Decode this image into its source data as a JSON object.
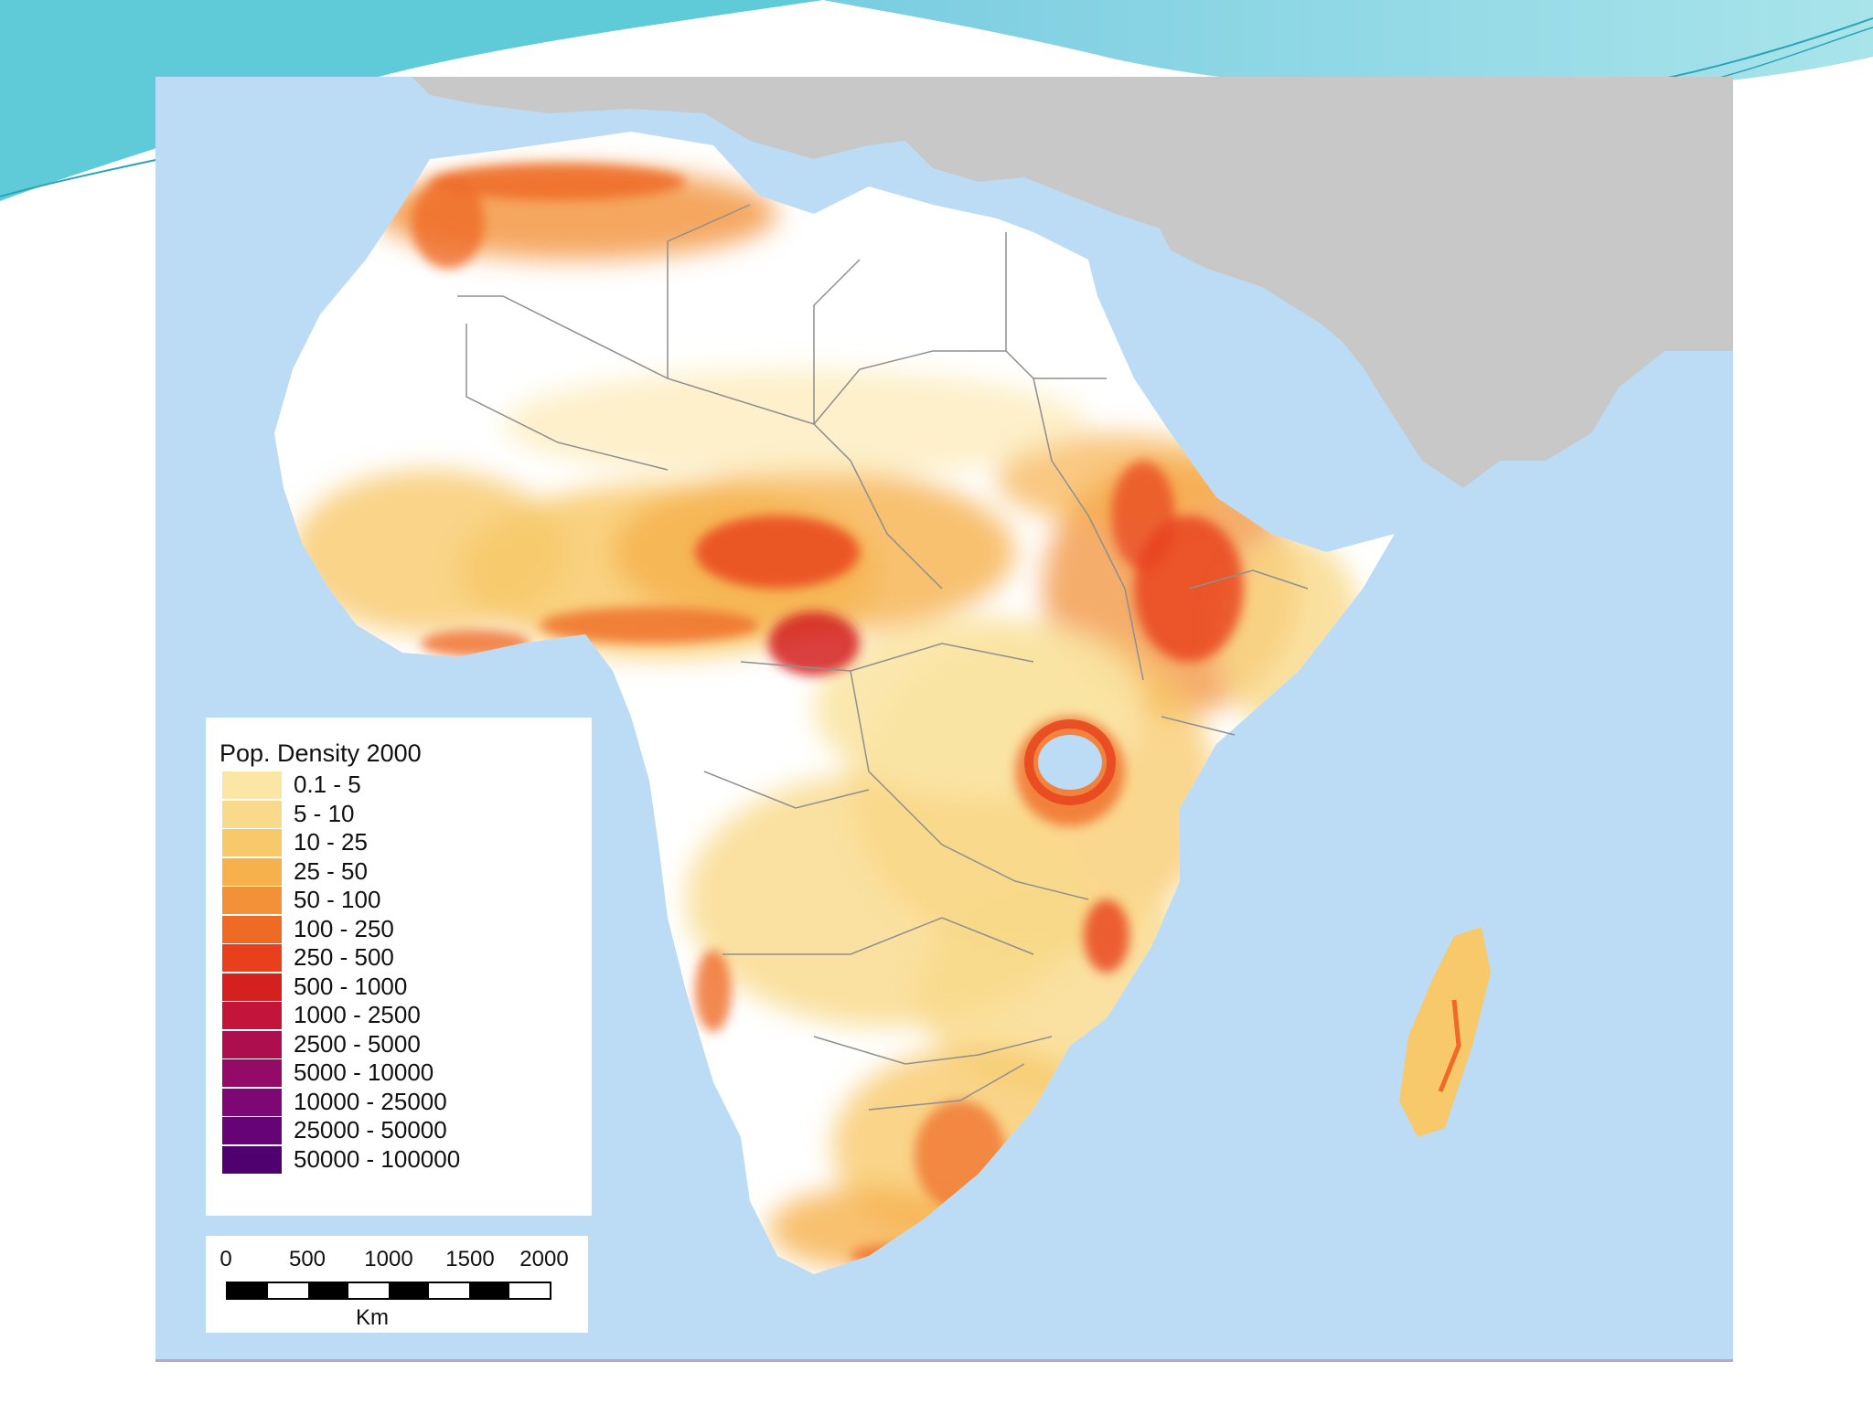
{
  "legend": {
    "title": "Pop. Density 2000",
    "classes": [
      {
        "label": "0.1 - 5",
        "color": "#fbe6a6"
      },
      {
        "label": "5 - 10",
        "color": "#f9da8a"
      },
      {
        "label": "10 - 25",
        "color": "#f8c96a"
      },
      {
        "label": "25 - 50",
        "color": "#f6b14d"
      },
      {
        "label": "50 - 100",
        "color": "#f29138"
      },
      {
        "label": "100 - 250",
        "color": "#ef6a25"
      },
      {
        "label": "250 - 500",
        "color": "#e8401c"
      },
      {
        "label": "500 - 1000",
        "color": "#d4201e"
      },
      {
        "label": "1000 - 2500",
        "color": "#c3153a"
      },
      {
        "label": "2500 - 5000",
        "color": "#ad0f4e"
      },
      {
        "label": "5000 - 10000",
        "color": "#930b66"
      },
      {
        "label": "10000 - 25000",
        "color": "#7d0775"
      },
      {
        "label": "25000 - 50000",
        "color": "#660477"
      },
      {
        "label": "50000 - 100000",
        "color": "#4f026f"
      }
    ]
  },
  "scale_bar": {
    "ticks": [
      "0",
      "500",
      "1000",
      "1500",
      "2000"
    ],
    "unit": "Km"
  },
  "colors": {
    "ocean": "#bcdcf5",
    "land_other": "#c8c8c8",
    "land_africa_base": "#ffffff",
    "border": "#8f8f8f",
    "nile": "#8a1538"
  }
}
